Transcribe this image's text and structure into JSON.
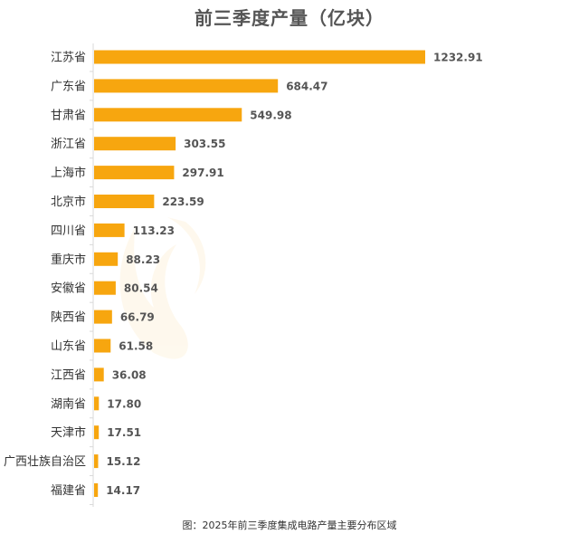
{
  "chart_data": {
    "type": "bar",
    "orientation": "horizontal",
    "title": "前三季度产量（亿块）",
    "caption": "图：2025年前三季度集成电路产量主要分布区域",
    "categories": [
      "江苏省",
      "广东省",
      "甘肃省",
      "浙江省",
      "上海市",
      "北京市",
      "四川省",
      "重庆市",
      "安徽省",
      "陕西省",
      "山东省",
      "江西省",
      "湖南省",
      "天津市",
      "广西壮族自治区",
      "福建省"
    ],
    "values": [
      1232.91,
      684.47,
      549.98,
      303.55,
      297.91,
      223.59,
      113.23,
      88.23,
      80.54,
      66.79,
      61.58,
      36.08,
      17.8,
      17.51,
      15.12,
      14.17
    ],
    "value_labels": [
      "1232.91",
      "684.47",
      "549.98",
      "303.55",
      "297.91",
      "223.59",
      "113.23",
      "88.23",
      "80.54",
      "66.79",
      "61.58",
      "36.08",
      "17.80",
      "17.51",
      "15.12",
      "14.17"
    ],
    "xlim": [
      0,
      1232.91
    ],
    "grid": false,
    "legend": "none",
    "colors": {
      "bar": "#f7a60f",
      "axis": "#d9d9d9",
      "label": "#333333",
      "value_label": "#555555"
    }
  }
}
